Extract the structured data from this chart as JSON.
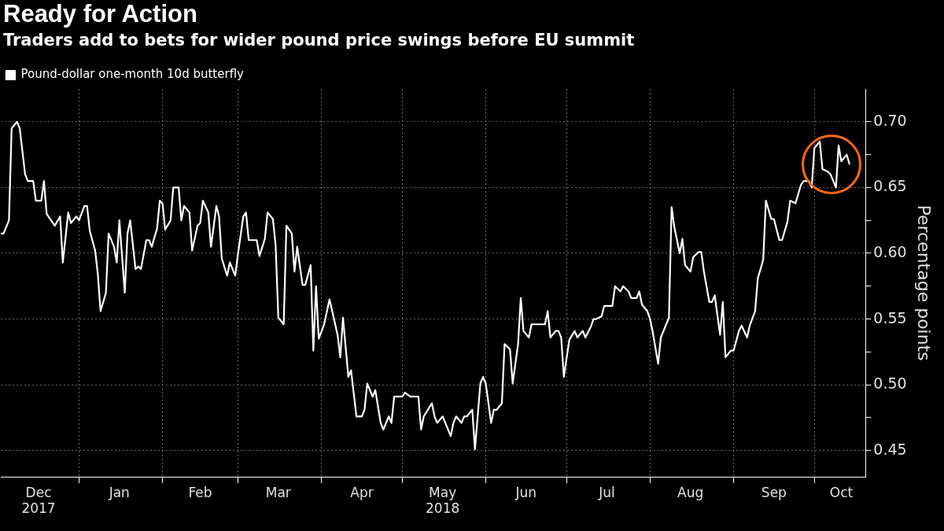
{
  "chart_data": {
    "type": "line",
    "title": "Ready for Action",
    "subtitle": "Traders add to bets for wider pound price swings before EU summit",
    "ylabel": "Percentage points",
    "legend": "top left",
    "grid": true,
    "xlim": [
      "2017-12-03",
      "2018-10-20"
    ],
    "xticks": [
      {
        "value": "2017-12-17",
        "label": "Dec\n2017"
      },
      {
        "value": "2018-01-01",
        "label": null
      },
      {
        "value": "2018-01-16",
        "label": "Jan"
      },
      {
        "value": "2018-02-01",
        "label": null
      },
      {
        "value": "2018-02-15",
        "label": "Feb"
      },
      {
        "value": "2018-03-01",
        "label": null
      },
      {
        "value": "2018-03-16",
        "label": "Mar"
      },
      {
        "value": "2018-04-01",
        "label": null
      },
      {
        "value": "2018-04-16",
        "label": "Apr"
      },
      {
        "value": "2018-05-01",
        "label": null
      },
      {
        "value": "2018-05-16",
        "label": "May\n2018"
      },
      {
        "value": "2018-06-01",
        "label": null
      },
      {
        "value": "2018-06-16",
        "label": "Jun"
      },
      {
        "value": "2018-07-01",
        "label": null
      },
      {
        "value": "2018-07-16",
        "label": "Jul"
      },
      {
        "value": "2018-08-01",
        "label": null
      },
      {
        "value": "2018-08-16",
        "label": "Aug"
      },
      {
        "value": "2018-09-01",
        "label": null
      },
      {
        "value": "2018-09-16",
        "label": "Sep"
      },
      {
        "value": "2018-10-01",
        "label": null
      },
      {
        "value": "2018-10-11",
        "label": "Oct"
      }
    ],
    "ylim": [
      0.43,
      0.725
    ],
    "yticks": [
      {
        "value": 0.45,
        "label": "0.45"
      },
      {
        "value": 0.475,
        "label": null
      },
      {
        "value": 0.5,
        "label": "0.50"
      },
      {
        "value": 0.525,
        "label": null
      },
      {
        "value": 0.55,
        "label": "0.55"
      },
      {
        "value": 0.575,
        "label": null
      },
      {
        "value": 0.6,
        "label": "0.60"
      },
      {
        "value": 0.625,
        "label": null
      },
      {
        "value": 0.65,
        "label": "0.65"
      },
      {
        "value": 0.675,
        "label": null
      },
      {
        "value": 0.7,
        "label": "0.70"
      }
    ],
    "x": [
      "2017-12-03",
      "2017-12-04",
      "2017-12-06",
      "2017-12-07",
      "2017-12-09",
      "2017-12-10",
      "2017-12-12",
      "2017-12-13",
      "2017-12-15",
      "2017-12-16",
      "2017-12-18",
      "2017-12-19",
      "2017-12-20",
      "2017-12-22",
      "2017-12-23",
      "2017-12-25",
      "2017-12-26",
      "2017-12-28",
      "2017-12-29",
      "2017-12-31",
      "2018-01-01",
      "2018-01-03",
      "2018-01-04",
      "2018-01-05",
      "2018-01-07",
      "2018-01-08",
      "2018-01-09",
      "2018-01-11",
      "2018-01-12",
      "2018-01-14",
      "2018-01-15",
      "2018-01-16",
      "2018-01-18",
      "2018-01-19",
      "2018-01-20",
      "2018-01-22",
      "2018-01-23",
      "2018-01-24",
      "2018-01-26",
      "2018-01-27",
      "2018-01-28",
      "2018-01-30",
      "2018-01-31",
      "2018-02-01",
      "2018-02-02",
      "2018-02-04",
      "2018-02-05",
      "2018-02-07",
      "2018-02-08",
      "2018-02-09",
      "2018-02-11",
      "2018-02-12",
      "2018-02-14",
      "2018-02-15",
      "2018-02-16",
      "2018-02-18",
      "2018-02-19",
      "2018-02-21",
      "2018-02-22",
      "2018-02-23",
      "2018-02-25",
      "2018-02-26",
      "2018-02-28",
      "2018-03-01",
      "2018-03-03",
      "2018-03-04",
      "2018-03-05",
      "2018-03-08",
      "2018-03-09",
      "2018-03-11",
      "2018-03-12",
      "2018-03-14",
      "2018-03-15",
      "2018-03-16",
      "2018-03-18",
      "2018-03-19",
      "2018-03-21",
      "2018-03-22",
      "2018-03-23",
      "2018-03-25",
      "2018-03-26",
      "2018-03-28",
      "2018-03-29",
      "2018-03-30",
      "2018-03-31",
      "2018-04-02",
      "2018-04-04",
      "2018-04-05",
      "2018-04-07",
      "2018-04-08",
      "2018-04-09",
      "2018-04-11",
      "2018-04-12",
      "2018-04-14",
      "2018-04-16",
      "2018-04-17",
      "2018-04-18",
      "2018-04-20",
      "2018-04-21",
      "2018-04-23",
      "2018-04-24",
      "2018-04-26",
      "2018-04-27",
      "2018-04-28",
      "2018-05-01",
      "2018-05-02",
      "2018-05-04",
      "2018-05-07",
      "2018-05-08",
      "2018-05-09",
      "2018-05-12",
      "2018-05-13",
      "2018-05-14",
      "2018-05-16",
      "2018-05-17",
      "2018-05-19",
      "2018-05-20",
      "2018-05-21",
      "2018-05-23",
      "2018-05-24",
      "2018-05-25",
      "2018-05-27",
      "2018-05-28",
      "2018-05-30",
      "2018-05-31",
      "2018-06-01",
      "2018-06-03",
      "2018-06-04",
      "2018-06-05",
      "2018-06-07",
      "2018-06-08",
      "2018-06-10",
      "2018-06-11",
      "2018-06-13",
      "2018-06-14",
      "2018-06-15",
      "2018-06-17",
      "2018-06-18",
      "2018-06-23",
      "2018-06-24",
      "2018-06-25",
      "2018-06-27",
      "2018-06-28",
      "2018-06-29",
      "2018-06-30",
      "2018-07-02",
      "2018-07-04",
      "2018-07-05",
      "2018-07-07",
      "2018-07-08",
      "2018-07-10",
      "2018-07-11",
      "2018-07-12",
      "2018-07-14",
      "2018-07-15",
      "2018-07-18",
      "2018-07-19",
      "2018-07-21",
      "2018-07-22",
      "2018-07-24",
      "2018-07-25",
      "2018-07-27",
      "2018-07-28",
      "2018-07-29",
      "2018-07-31",
      "2018-08-01",
      "2018-08-02",
      "2018-08-04",
      "2018-08-05",
      "2018-08-07",
      "2018-08-08",
      "2018-08-09",
      "2018-08-10",
      "2018-08-12",
      "2018-08-13",
      "2018-08-14",
      "2018-08-16",
      "2018-08-17",
      "2018-08-19",
      "2018-08-20",
      "2018-08-21",
      "2018-08-23",
      "2018-08-24",
      "2018-08-25",
      "2018-08-27",
      "2018-08-28",
      "2018-08-29",
      "2018-08-31",
      "2018-09-01",
      "2018-09-03",
      "2018-09-04",
      "2018-09-06",
      "2018-09-07",
      "2018-09-09",
      "2018-09-10",
      "2018-09-12",
      "2018-09-13",
      "2018-09-15",
      "2018-09-16",
      "2018-09-18",
      "2018-09-19",
      "2018-09-21",
      "2018-09-22",
      "2018-09-24",
      "2018-09-26",
      "2018-09-27",
      "2018-09-29",
      "2018-09-30",
      "2018-10-01",
      "2018-10-03",
      "2018-10-04",
      "2018-10-06",
      "2018-10-07",
      "2018-10-09",
      "2018-10-10",
      "2018-10-11",
      "2018-10-13",
      "2018-10-14"
    ],
    "series": [
      {
        "name": "Pound-dollar one-month 10d butterfly",
        "color": "#ffffff",
        "values": [
          0.615,
          0.615,
          0.625,
          0.695,
          0.7,
          0.695,
          0.66,
          0.655,
          0.655,
          0.64,
          0.64,
          0.655,
          0.63,
          0.624,
          0.621,
          0.628,
          0.593,
          0.631,
          0.623,
          0.628,
          0.625,
          0.636,
          0.636,
          0.617,
          0.602,
          0.584,
          0.556,
          0.57,
          0.615,
          0.605,
          0.593,
          0.625,
          0.57,
          0.615,
          0.625,
          0.588,
          0.59,
          0.588,
          0.61,
          0.61,
          0.605,
          0.619,
          0.64,
          0.638,
          0.618,
          0.625,
          0.65,
          0.65,
          0.625,
          0.636,
          0.631,
          0.602,
          0.621,
          0.623,
          0.64,
          0.631,
          0.605,
          0.636,
          0.628,
          0.596,
          0.583,
          0.593,
          0.583,
          0.599,
          0.628,
          0.631,
          0.61,
          0.61,
          0.598,
          0.611,
          0.631,
          0.626,
          0.606,
          0.551,
          0.546,
          0.621,
          0.615,
          0.586,
          0.605,
          0.576,
          0.576,
          0.591,
          0.526,
          0.575,
          0.535,
          0.546,
          0.565,
          0.556,
          0.538,
          0.521,
          0.551,
          0.506,
          0.511,
          0.476,
          0.476,
          0.481,
          0.501,
          0.491,
          0.496,
          0.471,
          0.466,
          0.476,
          0.471,
          0.491,
          0.491,
          0.494,
          0.491,
          0.491,
          0.466,
          0.476,
          0.486,
          0.476,
          0.471,
          0.476,
          0.471,
          0.461,
          0.471,
          0.476,
          0.471,
          0.476,
          0.476,
          0.481,
          0.451,
          0.501,
          0.506,
          0.501,
          0.471,
          0.481,
          0.481,
          0.486,
          0.531,
          0.527,
          0.501,
          0.531,
          0.566,
          0.541,
          0.536,
          0.546,
          0.546,
          0.556,
          0.536,
          0.541,
          0.541,
          0.536,
          0.506,
          0.534,
          0.541,
          0.536,
          0.541,
          0.536,
          0.544,
          0.55,
          0.55,
          0.552,
          0.56,
          0.56,
          0.575,
          0.571,
          0.575,
          0.571,
          0.566,
          0.566,
          0.571,
          0.561,
          0.556,
          0.55,
          0.54,
          0.516,
          0.536,
          0.546,
          0.551,
          0.635,
          0.62,
          0.6,
          0.611,
          0.591,
          0.586,
          0.597,
          0.601,
          0.601,
          0.586,
          0.563,
          0.563,
          0.568,
          0.538,
          0.563,
          0.521,
          0.526,
          0.526,
          0.541,
          0.545,
          0.536,
          0.545,
          0.556,
          0.581,
          0.595,
          0.64,
          0.626,
          0.626,
          0.61,
          0.61,
          0.624,
          0.64,
          0.638,
          0.652,
          0.655,
          0.655,
          0.65,
          0.68,
          0.685,
          0.664,
          0.662,
          0.66,
          0.65,
          0.682,
          0.67,
          0.675,
          0.668
        ]
      }
    ]
  }
}
